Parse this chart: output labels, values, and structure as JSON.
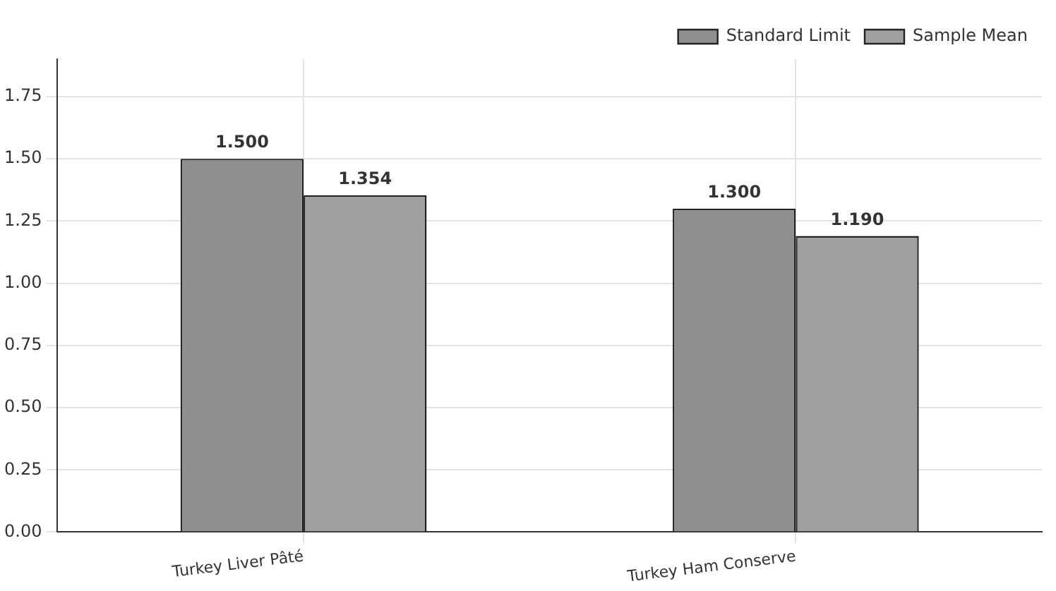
{
  "chart_data": {
    "type": "bar",
    "categories": [
      "Turkey Liver Pâté",
      "Turkey Ham Conserve"
    ],
    "series": [
      {
        "name": "Standard Limit",
        "color": "#8f8f8f",
        "values": [
          1.5,
          1.3
        ]
      },
      {
        "name": "Sample Mean",
        "color": "#a0a0a0",
        "values": [
          1.354,
          1.19
        ]
      }
    ],
    "ylim": [
      0,
      1.9
    ],
    "yticks": [
      {
        "value": 0,
        "label": "0.00"
      },
      {
        "value": 0.25,
        "label": "0.25"
      },
      {
        "value": 0.5,
        "label": "0.50"
      },
      {
        "value": 0.75,
        "label": "0.75"
      },
      {
        "value": 1,
        "label": "1.00"
      },
      {
        "value": 1.25,
        "label": "1.25"
      },
      {
        "value": 1.5,
        "label": "1.50"
      },
      {
        "value": 1.75,
        "label": "1.75"
      }
    ],
    "value_labels": [
      [
        "1.500",
        "1.300"
      ],
      [
        "1.354",
        "1.190"
      ]
    ],
    "grid": true,
    "legend": "top right"
  }
}
